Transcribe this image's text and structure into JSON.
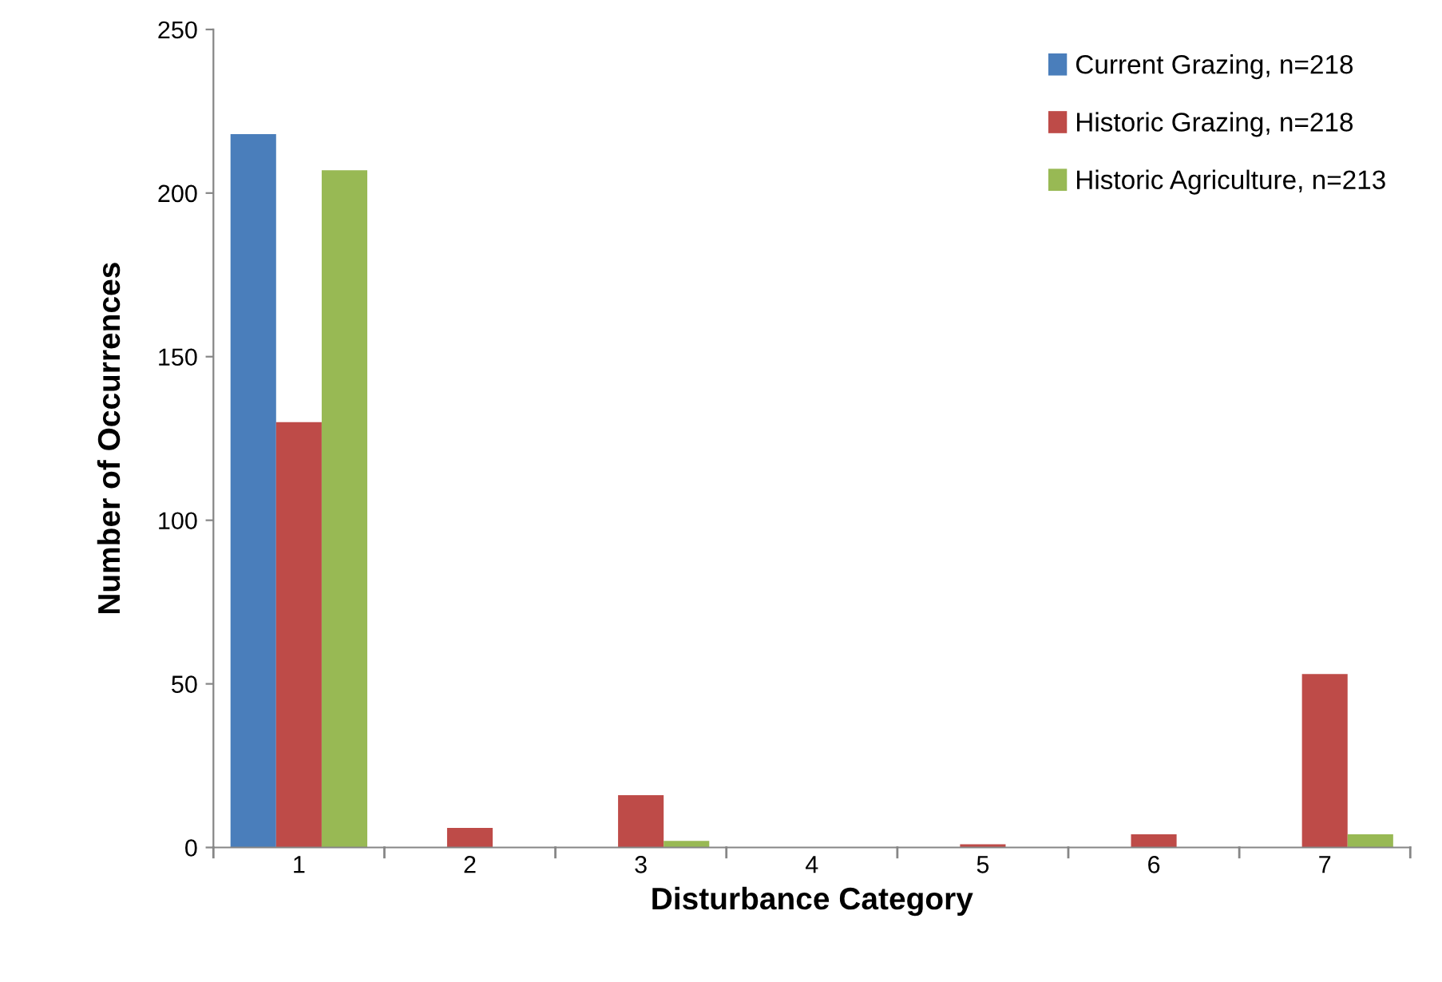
{
  "chart_data": {
    "type": "bar",
    "xlabel": "Disturbance Category",
    "ylabel": "Number of Occurrences",
    "categories": [
      "1",
      "2",
      "3",
      "4",
      "5",
      "6",
      "7"
    ],
    "series": [
      {
        "name": "Current Grazing, n=218",
        "color": "#4a7ebb",
        "values": [
          218,
          0,
          0,
          0,
          0,
          0,
          0
        ]
      },
      {
        "name": "Historic Grazing, n=218",
        "color": "#be4b48",
        "values": [
          130,
          6,
          16,
          0,
          1,
          4,
          53
        ]
      },
      {
        "name": "Historic Agriculture, n=213",
        "color": "#98b954",
        "values": [
          207,
          0,
          2,
          0,
          0,
          0,
          4
        ]
      }
    ],
    "ylim": [
      0,
      250
    ],
    "yticks": [
      0,
      50,
      100,
      150,
      200,
      250
    ],
    "grid": false,
    "legend": "top right"
  }
}
